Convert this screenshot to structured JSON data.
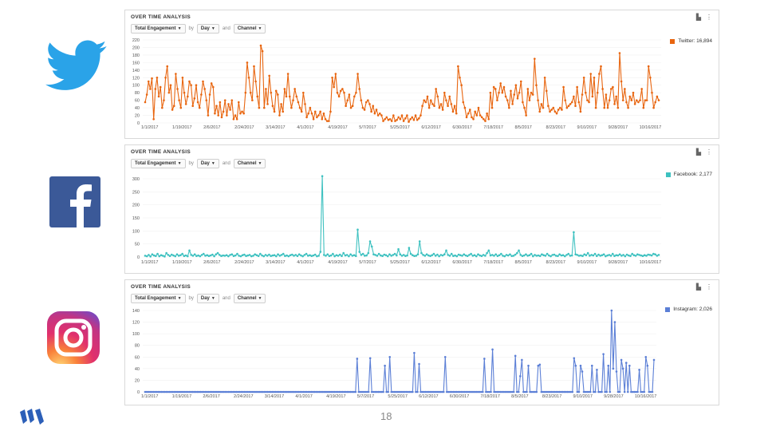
{
  "slide": {
    "page_number": "18"
  },
  "panels": [
    {
      "title": "OVER TIME ANALYSIS",
      "metric": "Total Engagement",
      "by_label": "by",
      "granularity": "Day",
      "and_label": "and",
      "dimension": "Channel",
      "legend": "Twitter: 16,894",
      "logo": "twitter-bird-logo"
    },
    {
      "title": "OVER TIME ANALYSIS",
      "metric": "Total Engagement",
      "by_label": "by",
      "granularity": "Day",
      "and_label": "and",
      "dimension": "Channel",
      "legend": "Facebook: 2,177",
      "logo": "facebook-f-logo"
    },
    {
      "title": "OVER TIME ANALYSIS",
      "metric": "Total Engagement",
      "by_label": "by",
      "granularity": "Day",
      "and_label": "and",
      "dimension": "Channel",
      "legend": "Instagram: 2,026",
      "logo": "instagram-camera-logo"
    }
  ],
  "chart_data": [
    {
      "type": "line",
      "color": "#e8650f",
      "x_tick_labels": [
        "1/1/2017",
        "1/19/2017",
        "2/6/2017",
        "2/24/2017",
        "3/14/2017",
        "4/1/2017",
        "4/19/2017",
        "5/7/2017",
        "5/25/2017",
        "6/12/2017",
        "6/30/2017",
        "7/18/2017",
        "8/5/2017",
        "8/23/2017",
        "9/10/2017",
        "9/28/2017",
        "10/16/2017"
      ],
      "y_ticks": [
        "220",
        "200",
        "180",
        "160",
        "140",
        "120",
        "100",
        "80",
        "60",
        "40",
        "20",
        "0"
      ],
      "ylim": [
        0,
        220
      ],
      "series": [
        {
          "name": "Twitter: 16,894",
          "values": [
            55,
            75,
            110,
            90,
            118,
            10,
            90,
            120,
            70,
            95,
            40,
            60,
            120,
            150,
            80,
            100,
            35,
            45,
            130,
            90,
            60,
            40,
            120,
            80,
            50,
            70,
            110,
            100,
            45,
            65,
            100,
            55,
            40,
            75,
            110,
            90,
            60,
            20,
            75,
            105,
            95,
            25,
            45,
            20,
            55,
            15,
            30,
            60,
            20,
            50,
            35,
            60,
            10,
            20,
            10,
            55,
            25,
            30,
            25,
            80,
            160,
            120,
            80,
            60,
            150,
            110,
            70,
            40,
            205,
            190,
            40,
            90,
            50,
            125,
            80,
            45,
            30,
            85,
            75,
            20,
            50,
            30,
            90,
            70,
            130,
            70,
            40,
            60,
            90,
            70,
            55,
            40,
            30,
            80,
            50,
            15,
            25,
            40,
            25,
            10,
            30,
            15,
            20,
            30,
            10,
            25,
            10,
            5,
            5,
            30,
            120,
            95,
            130,
            80,
            70,
            85,
            90,
            80,
            45,
            60,
            75,
            40,
            45,
            70,
            80,
            130,
            90,
            60,
            40,
            35,
            55,
            60,
            50,
            30,
            45,
            25,
            35,
            20,
            25,
            20,
            5,
            10,
            15,
            8,
            10,
            5,
            20,
            5,
            8,
            15,
            10,
            20,
            5,
            12,
            20,
            3,
            10,
            15,
            8,
            20,
            8,
            12,
            20,
            45,
            60,
            55,
            70,
            40,
            60,
            50,
            45,
            90,
            70,
            40,
            50,
            35,
            80,
            60,
            45,
            70,
            50,
            30,
            45,
            25,
            150,
            120,
            100,
            55,
            40,
            15,
            25,
            35,
            15,
            10,
            30,
            20,
            40,
            20,
            15,
            10,
            5,
            25,
            10,
            80,
            40,
            95,
            90,
            60,
            80,
            105,
            80,
            95,
            70,
            60,
            40,
            85,
            50,
            75,
            100,
            65,
            80,
            110,
            55,
            40,
            20,
            90,
            60,
            80,
            75,
            170,
            100,
            60,
            30,
            50,
            40,
            120,
            85,
            45,
            30,
            35,
            40,
            30,
            25,
            35,
            40,
            35,
            95,
            60,
            40,
            45,
            50,
            55,
            70,
            45,
            95,
            55,
            30,
            75,
            120,
            80,
            60,
            55,
            130,
            70,
            120,
            40,
            80,
            130,
            150,
            90,
            40,
            75,
            40,
            60,
            90,
            95,
            50,
            70,
            40,
            185,
            110,
            60,
            90,
            55,
            40,
            70,
            60,
            80,
            50,
            60,
            55,
            60,
            90,
            40,
            60,
            60,
            150,
            120,
            80,
            40,
            55,
            70,
            60
          ]
        }
      ]
    },
    {
      "type": "line",
      "color": "#3ec1c0",
      "x_tick_labels": [
        "1/1/2017",
        "1/19/2017",
        "2/6/2017",
        "2/24/2017",
        "3/14/2017",
        "4/1/2017",
        "4/19/2017",
        "5/7/2017",
        "5/25/2017",
        "6/12/2017",
        "6/30/2017",
        "7/18/2017",
        "8/5/2017",
        "8/23/2017",
        "9/10/2017",
        "9/28/2017",
        "10/16/2017"
      ],
      "y_ticks": [
        "300",
        "250",
        "200",
        "150",
        "100",
        "50",
        "0"
      ],
      "ylim": [
        0,
        300
      ],
      "series": [
        {
          "name": "Facebook: 2,177",
          "values": [
            5,
            3,
            8,
            2,
            10,
            6,
            4,
            12,
            3,
            7,
            5,
            2,
            15,
            8,
            4,
            9,
            6,
            3,
            10,
            5,
            7,
            12,
            4,
            6,
            3,
            25,
            8,
            5,
            10,
            4,
            6,
            3,
            8,
            12,
            5,
            7,
            4,
            6,
            9,
            3,
            10,
            15,
            8,
            4,
            6,
            5,
            7,
            3,
            8,
            10,
            4,
            6,
            12,
            5,
            3,
            7,
            9,
            4,
            6,
            8,
            3,
            5,
            10,
            7,
            4,
            12,
            6,
            3,
            8,
            5,
            9,
            4,
            6,
            7,
            3,
            10,
            5,
            8,
            12,
            4,
            6,
            3,
            7,
            9,
            5,
            8,
            4,
            10,
            6,
            3,
            8,
            12,
            5,
            7,
            4,
            6,
            9,
            3,
            5,
            20,
            310,
            8,
            5,
            10,
            4,
            6,
            12,
            3,
            7,
            5,
            9,
            4,
            15,
            6,
            8,
            3,
            10,
            5,
            7,
            4,
            105,
            20,
            8,
            12,
            5,
            6,
            15,
            60,
            40,
            10,
            8,
            5,
            12,
            6,
            4,
            9,
            7,
            3,
            10,
            5,
            8,
            12,
            6,
            30,
            10,
            5,
            8,
            4,
            6,
            35,
            12,
            7,
            4,
            5,
            10,
            60,
            15,
            8,
            5,
            10,
            6,
            4,
            7,
            12,
            5,
            9,
            3,
            8,
            6,
            10,
            25,
            8,
            5,
            12,
            4,
            6,
            3,
            9,
            7,
            5,
            10,
            6,
            4,
            8,
            12,
            5,
            7,
            3,
            10,
            6,
            4,
            8,
            5,
            15,
            25,
            6,
            8,
            5,
            10,
            4,
            7,
            12,
            5,
            3,
            8,
            6,
            10,
            4,
            5,
            9,
            15,
            25,
            8,
            4,
            6,
            10,
            5,
            7,
            12,
            3,
            8,
            5,
            6,
            4,
            10,
            7,
            5,
            12,
            6,
            3,
            8,
            9,
            5,
            4,
            10,
            6,
            7,
            3,
            8,
            12,
            5,
            6,
            95,
            10,
            8,
            5,
            6,
            4,
            10,
            7,
            15,
            5,
            8,
            6,
            12,
            4,
            9,
            5,
            7,
            10,
            3,
            6,
            8,
            5,
            12,
            4,
            7,
            6,
            10,
            5,
            8,
            3,
            9,
            6,
            4,
            12,
            7,
            5,
            10,
            8,
            6,
            4,
            7,
            5,
            9,
            8,
            6,
            12,
            10,
            5,
            8
          ]
        }
      ]
    },
    {
      "type": "line",
      "color": "#5b7fd6",
      "x_tick_labels": [
        "1/1/2017",
        "1/19/2017",
        "2/6/2017",
        "2/24/2017",
        "3/14/2017",
        "4/1/2017",
        "4/19/2017",
        "5/7/2017",
        "5/25/2017",
        "6/12/2017",
        "6/30/2017",
        "7/18/2017",
        "8/5/2017",
        "8/23/2017",
        "9/10/2017",
        "9/28/2017",
        "10/16/2017"
      ],
      "y_ticks": [
        "140",
        "120",
        "100",
        "80",
        "60",
        "40",
        "20",
        "0"
      ],
      "ylim": [
        0,
        140
      ],
      "series": [
        {
          "name": "Instagram: 2,026",
          "values": [
            0,
            0,
            0,
            0,
            0,
            0,
            0,
            0,
            0,
            0,
            0,
            0,
            0,
            0,
            0,
            0,
            0,
            0,
            0,
            0,
            0,
            0,
            0,
            0,
            0,
            0,
            0,
            0,
            0,
            0,
            0,
            0,
            0,
            0,
            0,
            0,
            0,
            0,
            0,
            0,
            0,
            0,
            0,
            0,
            0,
            0,
            0,
            0,
            0,
            0,
            0,
            0,
            0,
            0,
            0,
            0,
            0,
            0,
            0,
            0,
            0,
            0,
            0,
            0,
            0,
            0,
            0,
            0,
            0,
            0,
            0,
            0,
            0,
            0,
            0,
            0,
            0,
            0,
            0,
            0,
            0,
            0,
            0,
            0,
            0,
            0,
            0,
            0,
            0,
            0,
            0,
            0,
            0,
            0,
            0,
            0,
            0,
            0,
            0,
            0,
            0,
            0,
            0,
            0,
            0,
            0,
            0,
            0,
            0,
            0,
            0,
            0,
            0,
            0,
            0,
            0,
            0,
            0,
            0,
            0,
            0,
            0,
            0,
            0,
            0,
            0,
            0,
            0,
            0,
            0,
            57,
            0,
            0,
            0,
            0,
            0,
            0,
            0,
            58,
            0,
            0,
            0,
            0,
            0,
            0,
            0,
            0,
            45,
            0,
            0,
            60,
            0,
            0,
            0,
            0,
            0,
            0,
            0,
            0,
            0,
            0,
            0,
            0,
            0,
            0,
            67,
            0,
            0,
            48,
            0,
            0,
            0,
            0,
            0,
            0,
            0,
            0,
            0,
            0,
            0,
            0,
            0,
            0,
            0,
            60,
            0,
            0,
            0,
            0,
            0,
            0,
            0,
            0,
            0,
            0,
            0,
            0,
            0,
            0,
            0,
            0,
            0,
            0,
            0,
            0,
            0,
            0,
            0,
            57,
            0,
            0,
            0,
            0,
            73,
            0,
            0,
            0,
            0,
            0,
            0,
            0,
            0,
            0,
            0,
            0,
            0,
            0,
            62,
            0,
            0,
            27,
            55,
            0,
            0,
            0,
            45,
            0,
            0,
            0,
            0,
            0,
            45,
            47,
            0,
            0,
            0,
            0,
            0,
            0,
            0,
            0,
            0,
            0,
            0,
            0,
            0,
            0,
            0,
            0,
            0,
            0,
            0,
            0,
            58,
            45,
            0,
            0,
            45,
            35,
            0,
            0,
            0,
            0,
            0,
            45,
            0,
            0,
            38,
            0,
            0,
            0,
            65,
            0,
            0,
            45,
            0,
            140,
            40,
            120,
            35,
            0,
            0,
            55,
            40,
            0,
            50,
            0,
            45,
            0,
            0,
            0,
            0,
            0,
            38,
            0,
            0,
            0,
            60,
            45,
            0,
            0,
            0,
            55
          ]
        }
      ]
    }
  ]
}
